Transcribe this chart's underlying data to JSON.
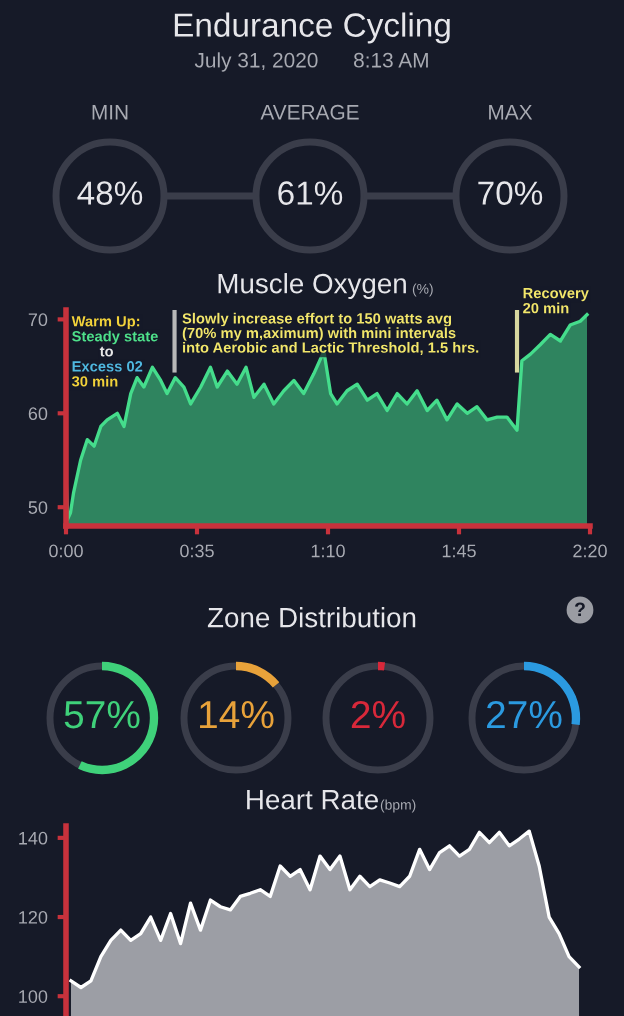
{
  "chart_data": [
    {
      "type": "other",
      "title": "Endurance Cycling",
      "subtitle": "July 31, 2020      8:13 AM",
      "categories": [
        "MIN",
        "AVERAGE",
        "MAX"
      ],
      "values": [
        48,
        61,
        70
      ],
      "value_labels": [
        "48%",
        "61%",
        "70%"
      ],
      "color": "#3a3d4a"
    },
    {
      "type": "area",
      "title": "Muscle Oxygen",
      "ylabel": "(%)",
      "ylim": [
        48,
        71
      ],
      "yticks": [
        50,
        60,
        70
      ],
      "xlim": [
        0,
        140
      ],
      "xticks": [
        {
          "value": 0,
          "label": "0:00"
        },
        {
          "value": 35,
          "label": "0:35"
        },
        {
          "value": 70,
          "label": "1:10"
        },
        {
          "value": 105,
          "label": "1:45"
        },
        {
          "value": 140,
          "label": "2:20"
        }
      ],
      "x": [
        0,
        0.4,
        1.2,
        2,
        3.9,
        5.7,
        7.5,
        9.3,
        11,
        13.7,
        15.5,
        17.3,
        19,
        20.8,
        23.1,
        25.3,
        27,
        29.2,
        31.5,
        33.3,
        36,
        38.6,
        40.4,
        43.1,
        45.7,
        48.1,
        50.2,
        52.9,
        55.5,
        58.2,
        60.9,
        63.5,
        66.2,
        68.9,
        70.7,
        72.4,
        75.1,
        77.8,
        80.5,
        83.1,
        85.8,
        88.5,
        91.1,
        93.8,
        96.5,
        99.1,
        101.8,
        104.5,
        107.2,
        109.8,
        112.5,
        115.2,
        117.8,
        120.5,
        121.8,
        124.1,
        126.7,
        129.4,
        132.1,
        134.7,
        137.4,
        139.2
      ],
      "series": [
        {
          "color": "#45dd8c",
          "values": [
            53.6,
            48.7,
            49.4,
            51.5,
            55,
            57.2,
            56.5,
            58.6,
            59.3,
            60,
            58.6,
            62.1,
            63.8,
            62.8,
            64.9,
            63.5,
            62.1,
            63.8,
            62.8,
            61,
            62.8,
            64.9,
            62.8,
            64.5,
            63.1,
            64.9,
            61.7,
            63.1,
            61,
            62.4,
            63.5,
            62.1,
            64.2,
            66.6,
            62.1,
            61,
            62.4,
            63.1,
            61.4,
            62.1,
            60.3,
            62.1,
            61,
            62.4,
            60.3,
            61.4,
            59.3,
            61,
            60,
            60.7,
            59.3,
            59.6,
            59.6,
            58.2,
            65.6,
            66.3,
            67.3,
            68.4,
            67.7,
            69.4,
            69.8,
            70.5
          ]
        }
      ],
      "ref_lines": [
        {
          "axis": "x",
          "value": 29,
          "color": "#b8b8b8"
        },
        {
          "axis": "x",
          "value": 120.5,
          "color": "#d8d8a0"
        }
      ],
      "annotations": [
        "Warm Up:",
        "Steady state",
        "to",
        "Excess 02",
        "30 min",
        "Slowly increase effort to 150 watts avg",
        "(70% my m,aximum) with mini intervals",
        "into Aerobic and Lactic Threshold, 1.5 hrs.",
        "Recovery",
        "20 min"
      ]
    },
    {
      "type": "other",
      "title": "Zone Distribution",
      "categories": [
        null,
        null,
        null,
        null
      ],
      "values": [
        57,
        14,
        2,
        27
      ],
      "value_labels": [
        "57%",
        "14%",
        "2%",
        "27%"
      ],
      "colors": [
        "#3fd17a",
        "#e8a23a",
        "#d8283a",
        "#2b9ae0"
      ],
      "annotations": [
        "?"
      ]
    },
    {
      "type": "area",
      "title": "Heart Rate",
      "ylabel": "(bpm)",
      "ylim": [
        95,
        143
      ],
      "yticks": [
        100,
        120,
        140
      ],
      "categories": [
        null,
        null,
        null,
        null,
        null,
        null,
        null,
        null,
        null,
        null,
        null,
        null,
        null,
        null,
        null,
        null,
        null,
        null,
        null,
        null,
        null,
        null,
        null,
        null,
        null,
        null,
        null,
        null,
        null,
        null,
        null,
        null,
        null,
        null,
        null,
        null,
        null,
        null,
        null,
        null,
        null,
        null,
        null,
        null,
        null,
        null,
        null,
        null,
        null,
        null,
        null,
        null
      ],
      "series": [
        {
          "color": "#9c9ea5",
          "values": [
            103.9,
            102.2,
            103.9,
            110,
            114.1,
            116.7,
            114.1,
            115.8,
            120,
            114.1,
            120.9,
            113.3,
            123.5,
            116.7,
            124.3,
            122.6,
            121.8,
            125.2,
            126,
            126.9,
            125.2,
            132.9,
            130.3,
            132,
            126.9,
            135.4,
            132,
            135.4,
            126.9,
            130.3,
            127.7,
            129.4,
            128.6,
            127.7,
            130.3,
            137.1,
            132,
            136.3,
            138,
            135.4,
            137.1,
            141.4,
            138.8,
            141.4,
            138,
            139.7,
            141.7,
            132.9,
            120,
            115.8,
            110,
            107.4
          ]
        }
      ]
    }
  ]
}
